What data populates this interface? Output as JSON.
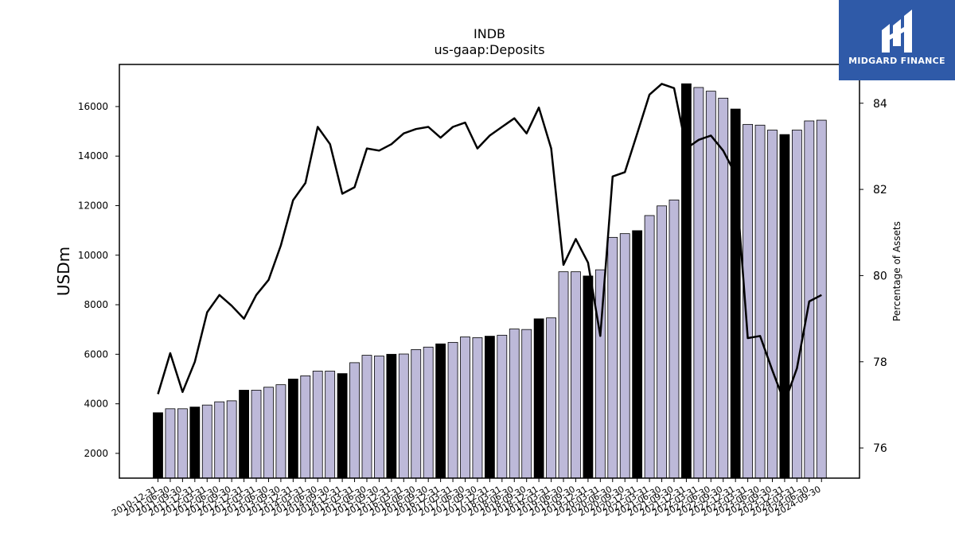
{
  "brand": {
    "name": "MIDGARD FINANCE",
    "bg_color": "#2f5aa8"
  },
  "chart_data": {
    "type": "bar",
    "title": "INDB",
    "subtitle": "us-gaap:Deposits",
    "ylabel": "USDm",
    "y2label": "Percentage of Assets",
    "ylim": [
      1000,
      17700
    ],
    "y2lim": [
      75.3,
      84.9
    ],
    "yticks": [
      2000,
      4000,
      6000,
      8000,
      10000,
      12000,
      14000,
      16000
    ],
    "y2ticks": [
      76,
      78,
      80,
      82,
      84
    ],
    "grid": false,
    "colors": {
      "annual_bar": "#000000",
      "quarter_bar": "#bdb9d9",
      "line": "#000000"
    },
    "categories": [
      "2010-12-31",
      "2011-06-30",
      "2011-09-30",
      "2011-12-31",
      "2012-03-31",
      "2012-06-30",
      "2012-09-30",
      "2012-12-31",
      "2013-03-31",
      "2013-06-30",
      "2013-09-30",
      "2013-12-31",
      "2014-03-31",
      "2014-06-30",
      "2014-09-30",
      "2014-12-31",
      "2015-03-31",
      "2015-06-30",
      "2015-09-30",
      "2015-12-31",
      "2016-03-31",
      "2016-06-30",
      "2016-09-30",
      "2016-12-31",
      "2017-03-31",
      "2017-06-30",
      "2017-09-30",
      "2017-12-31",
      "2018-03-31",
      "2018-06-30",
      "2018-09-30",
      "2018-12-31",
      "2019-03-31",
      "2019-06-30",
      "2019-09-30",
      "2019-12-31",
      "2020-03-31",
      "2020-06-30",
      "2020-09-30",
      "2020-12-31",
      "2021-03-31",
      "2021-06-30",
      "2021-09-30",
      "2021-12-31",
      "2022-03-31",
      "2022-06-30",
      "2022-09-30",
      "2022-12-31",
      "2023-03-31",
      "2023-06-30",
      "2023-09-30",
      "2023-12-31",
      "2024-03-31",
      "2024-06-30",
      "2024-09-30"
    ],
    "series": [
      {
        "type": "bar",
        "annual": [
          true,
          false,
          false,
          true,
          false,
          false,
          false,
          true,
          false,
          false,
          false,
          true,
          false,
          false,
          false,
          true,
          false,
          false,
          false,
          true,
          false,
          false,
          false,
          true,
          false,
          false,
          false,
          true,
          false,
          false,
          false,
          true,
          false,
          false,
          false,
          true,
          false,
          false,
          false,
          true,
          false,
          false,
          false,
          true,
          false,
          false,
          false,
          true,
          false,
          false,
          false,
          true,
          false,
          false,
          false
        ],
        "values": [
          3640,
          3800,
          3800,
          3870,
          3950,
          4080,
          4120,
          4550,
          4550,
          4670,
          4770,
          5000,
          5130,
          5320,
          5320,
          5220,
          5660,
          5960,
          5930,
          6000,
          6010,
          6190,
          6290,
          6420,
          6480,
          6700,
          6670,
          6730,
          6770,
          7020,
          7000,
          7430,
          7470,
          9330,
          9330,
          9160,
          9410,
          10720,
          10870,
          10990,
          11600,
          11990,
          12230,
          16920,
          16770,
          16620,
          16340,
          15900,
          15280,
          15250,
          15050,
          14870,
          15050,
          15420,
          15450
        ]
      },
      {
        "type": "line",
        "axis": "y2",
        "values": [
          77.25,
          78.2,
          77.3,
          78.0,
          79.15,
          79.55,
          79.3,
          79.0,
          79.55,
          79.9,
          80.7,
          81.75,
          82.15,
          83.45,
          83.05,
          81.9,
          82.05,
          82.95,
          82.9,
          83.05,
          83.3,
          83.4,
          83.45,
          83.2,
          83.45,
          83.55,
          82.95,
          83.25,
          83.45,
          83.65,
          83.3,
          83.9,
          82.95,
          80.25,
          80.85,
          80.3,
          78.6,
          82.3,
          82.4,
          83.3,
          84.2,
          84.45,
          84.35,
          82.95,
          83.15,
          83.25,
          82.9,
          82.35,
          78.55,
          78.6,
          77.8,
          77.05,
          77.85,
          79.4,
          79.55
        ]
      }
    ]
  }
}
